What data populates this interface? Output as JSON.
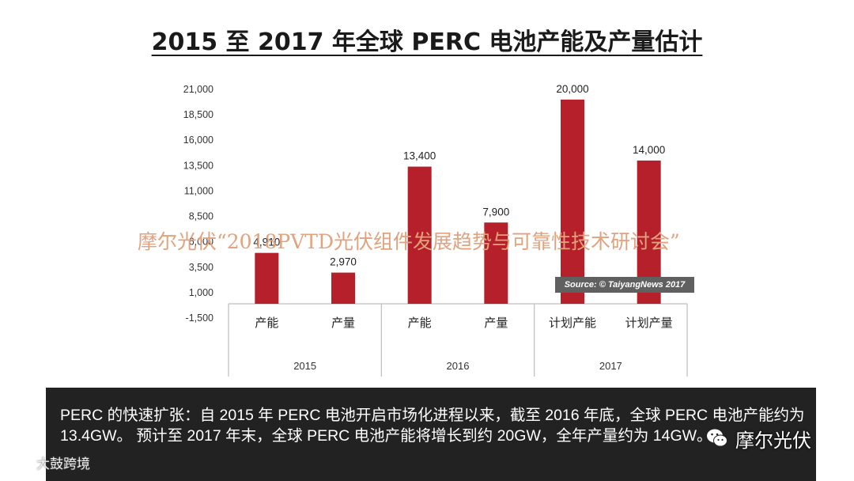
{
  "title": "2015 至 2017 年全球 PERC 电池产能及产量估计",
  "chart_data": {
    "type": "bar",
    "title": "2015 至 2017 年全球 PERC 电池产能及产量估计",
    "yticks": [
      "21,000",
      "18,500",
      "16,000",
      "13,500",
      "11,000",
      "8,500",
      "6,000",
      "3,500",
      "1,000",
      "-1,500"
    ],
    "ylim": [
      -1500,
      21000
    ],
    "groups": [
      {
        "label": "2015",
        "bars": [
          {
            "category": "产能",
            "value": 4910,
            "label": "4,910"
          },
          {
            "category": "产量",
            "value": 2970,
            "label": "2,970"
          }
        ]
      },
      {
        "label": "2016",
        "bars": [
          {
            "category": "产能",
            "value": 13400,
            "label": "13,400"
          },
          {
            "category": "产量",
            "value": 7900,
            "label": "7,900"
          }
        ]
      },
      {
        "label": "2017",
        "bars": [
          {
            "category": "计划产能",
            "value": 20000,
            "label": "20,000"
          },
          {
            "category": "计划产量",
            "value": 14000,
            "label": "14,000"
          }
        ]
      }
    ],
    "bar_color": "#b5202a",
    "grid": false
  },
  "watermark": "摩尔光伏“2018PVTD光伏组件发展趋势与可靠性技术研讨会”",
  "source": "Source: © TaiyangNews 2017",
  "caption": "PERC 的快速扩张：自 2015 年 PERC 电池开启市场化进程以来，截至 2016 年底，全球 PERC 电池产能约为 13.4GW。 预计至 2017 年末，全球 PERC 电池产能将增长到约 20GW，全年产量约为 14GW。",
  "wechat_label": "摩尔光伏",
  "weibo_label": "大鼓跨境"
}
